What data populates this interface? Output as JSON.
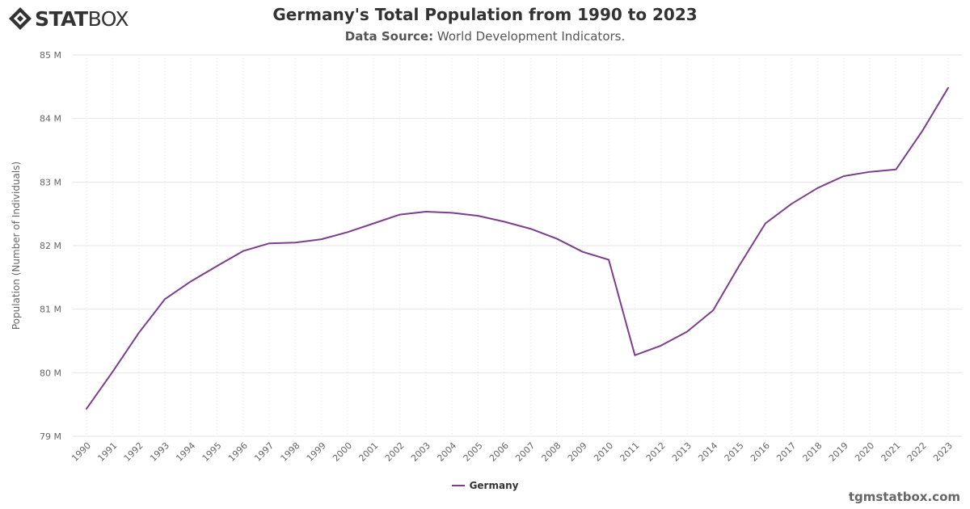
{
  "brand": {
    "logo_bold": "STAT",
    "logo_light": "BOX",
    "logo_icon": "statbox-diamond-icon",
    "watermark": "tgmstatbox.com"
  },
  "header": {
    "title": "Germany's Total Population from 1990 to 2023",
    "source_label": "Data Source:",
    "source_value": "World Development Indicators."
  },
  "colors": {
    "series": "#7b3f8c",
    "grid": "#e6e6e6",
    "axis_text": "#666666"
  },
  "chart_data": {
    "type": "line",
    "title": "Germany's Total Population from 1990 to 2023",
    "subtitle": "Data Source: World Development Indicators.",
    "xlabel": "",
    "ylabel": "Population (Number of Individuals)",
    "x": [
      "1990",
      "1991",
      "1992",
      "1993",
      "1994",
      "1995",
      "1996",
      "1997",
      "1998",
      "1999",
      "2000",
      "2001",
      "2002",
      "2003",
      "2004",
      "2005",
      "2006",
      "2007",
      "2008",
      "2009",
      "2010",
      "2011",
      "2012",
      "2013",
      "2014",
      "2015",
      "2016",
      "2017",
      "2018",
      "2019",
      "2020",
      "2021",
      "2022",
      "2023"
    ],
    "y_ticks": [
      79000000,
      80000000,
      81000000,
      82000000,
      83000000,
      84000000,
      85000000
    ],
    "y_tick_labels": [
      "79 M",
      "80 M",
      "81 M",
      "82 M",
      "83 M",
      "84 M",
      "85 M"
    ],
    "ylim": [
      79000000,
      85000000
    ],
    "grid": true,
    "legend_position": "bottom-center",
    "series": [
      {
        "name": "Germany",
        "values": [
          79433000,
          80014000,
          80624000,
          81157000,
          81438000,
          81678000,
          81915000,
          82035000,
          82047000,
          82100000,
          82212000,
          82350000,
          82488000,
          82534000,
          82516000,
          82469000,
          82376000,
          82266000,
          82110000,
          81902000,
          81777000,
          80275000,
          80426000,
          80646000,
          80983000,
          81687000,
          82349000,
          82657000,
          82906000,
          83093000,
          83161000,
          83197000,
          83798000,
          84482000
        ]
      }
    ]
  }
}
